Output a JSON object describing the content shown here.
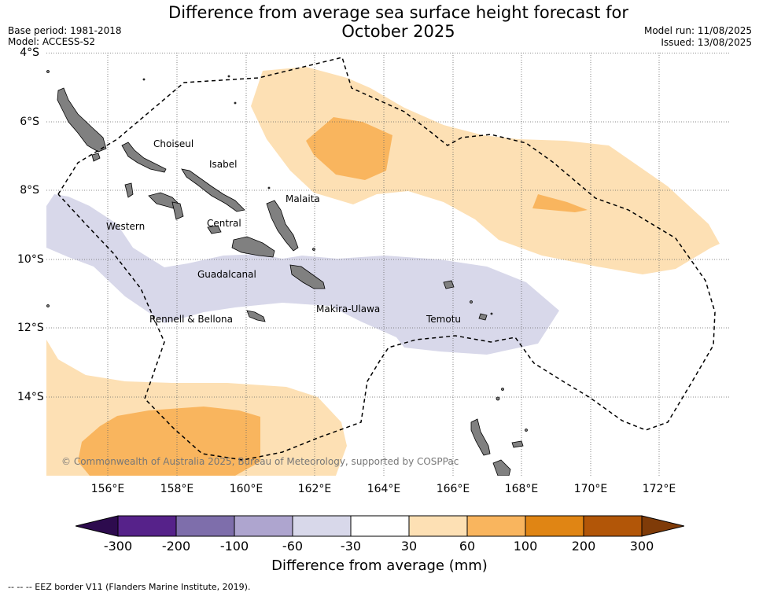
{
  "header": {
    "title_line1": "Difference from average sea surface height forecast for",
    "title_line2": "October 2025",
    "base_period": "Base period: 1981-2018",
    "model": "Model: ACCESS-S2",
    "model_run": "Model run: 11/08/2025",
    "issued": "Issued: 13/08/2025"
  },
  "map": {
    "lat_labels": [
      "4°S",
      "6°S",
      "8°S",
      "10°S",
      "12°S",
      "14°S"
    ],
    "lon_labels": [
      "156°E",
      "158°E",
      "160°E",
      "162°E",
      "164°E",
      "166°E",
      "168°E",
      "170°E",
      "172°E"
    ],
    "provinces": [
      "Choiseul",
      "Isabel",
      "Malaita",
      "Western",
      "Central",
      "Guadalcanal",
      "Makira-Ulawa",
      "Rennell & Bellona",
      "Temotu"
    ],
    "copyright": "© Commonwealth of Australia 2025, Bureau of Meteorology, supported by COSPPac",
    "land_color": "#808080",
    "grid": true
  },
  "colorbar": {
    "ticks": [
      "-300",
      "-200",
      "-100",
      "-60",
      "-30",
      "30",
      "60",
      "100",
      "200",
      "300"
    ],
    "colors": [
      "#2d0b4e",
      "#56228a",
      "#7e6eab",
      "#aea5cf",
      "#d8d8ea",
      "#ffffff",
      "#fde0b4",
      "#f9b55e",
      "#e08514",
      "#b25608",
      "#7f3b08"
    ],
    "title": "Difference from average (mm)"
  },
  "footer": {
    "eez_note": "--  --  -- EEZ border V11 (Flanders Marine Institute, 2019)."
  }
}
